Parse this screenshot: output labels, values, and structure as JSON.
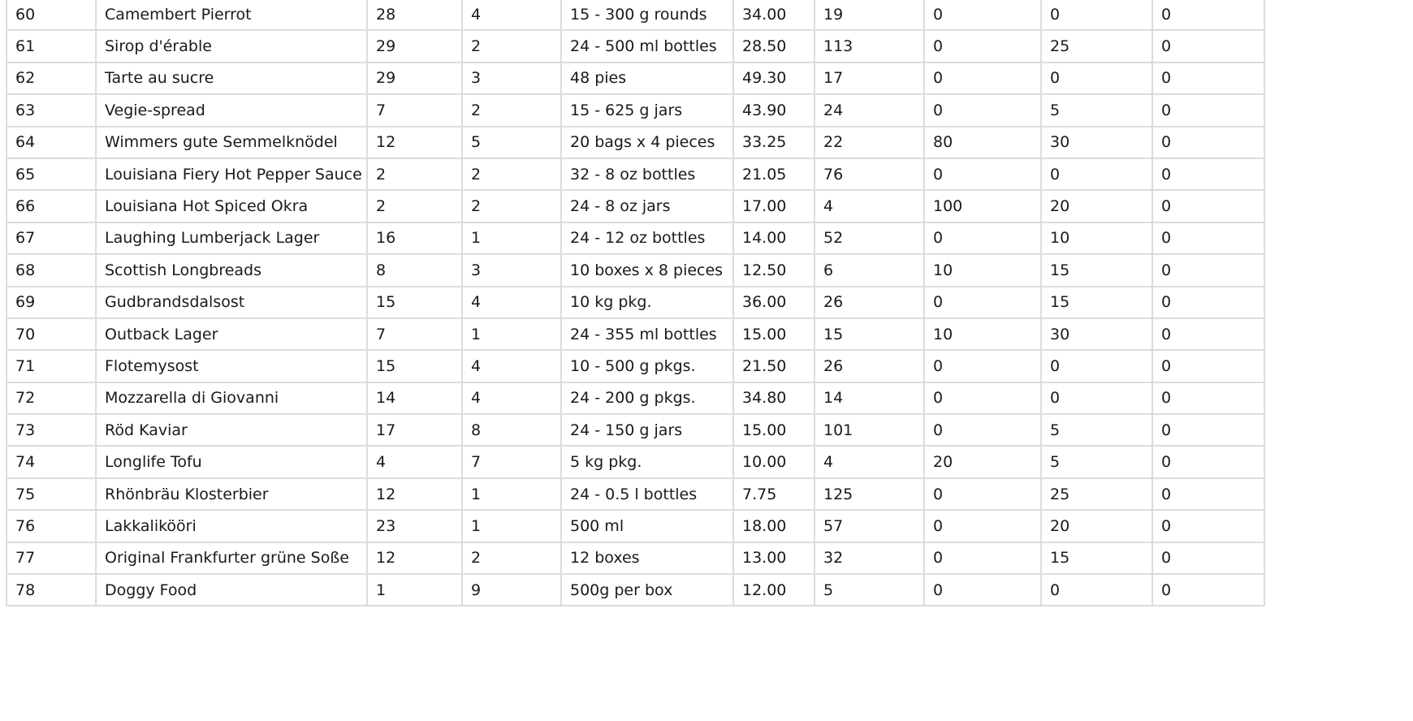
{
  "grid": {
    "rows": [
      [
        "60",
        "Camembert Pierrot",
        "28",
        "4",
        "15 - 300 g rounds",
        "34.00",
        "19",
        "0",
        "0",
        "0"
      ],
      [
        "61",
        "Sirop d'érable",
        "29",
        "2",
        "24 - 500 ml bottles",
        "28.50",
        "113",
        "0",
        "25",
        "0"
      ],
      [
        "62",
        "Tarte au sucre",
        "29",
        "3",
        "48 pies",
        "49.30",
        "17",
        "0",
        "0",
        "0"
      ],
      [
        "63",
        "Vegie-spread",
        "7",
        "2",
        "15 - 625 g jars",
        "43.90",
        "24",
        "0",
        "5",
        "0"
      ],
      [
        "64",
        "Wimmers gute Semmelknödel",
        "12",
        "5",
        "20 bags x 4 pieces",
        "33.25",
        "22",
        "80",
        "30",
        "0"
      ],
      [
        "65",
        "Louisiana Fiery Hot Pepper Sauce",
        "2",
        "2",
        "32 - 8 oz bottles",
        "21.05",
        "76",
        "0",
        "0",
        "0"
      ],
      [
        "66",
        "Louisiana Hot Spiced Okra",
        "2",
        "2",
        "24 - 8 oz jars",
        "17.00",
        "4",
        "100",
        "20",
        "0"
      ],
      [
        "67",
        "Laughing Lumberjack Lager",
        "16",
        "1",
        "24 - 12 oz bottles",
        "14.00",
        "52",
        "0",
        "10",
        "0"
      ],
      [
        "68",
        "Scottish Longbreads",
        "8",
        "3",
        "10 boxes x 8 pieces",
        "12.50",
        "6",
        "10",
        "15",
        "0"
      ],
      [
        "69",
        "Gudbrandsdalsost",
        "15",
        "4",
        "10 kg pkg.",
        "36.00",
        "26",
        "0",
        "15",
        "0"
      ],
      [
        "70",
        "Outback Lager",
        "7",
        "1",
        "24 - 355 ml bottles",
        "15.00",
        "15",
        "10",
        "30",
        "0"
      ],
      [
        "71",
        "Flotemysost",
        "15",
        "4",
        "10 - 500 g pkgs.",
        "21.50",
        "26",
        "0",
        "0",
        "0"
      ],
      [
        "72",
        "Mozzarella di Giovanni",
        "14",
        "4",
        "24 - 200 g pkgs.",
        "34.80",
        "14",
        "0",
        "0",
        "0"
      ],
      [
        "73",
        "Röd Kaviar",
        "17",
        "8",
        "24 - 150 g jars",
        "15.00",
        "101",
        "0",
        "5",
        "0"
      ],
      [
        "74",
        "Longlife Tofu",
        "4",
        "7",
        "5 kg pkg.",
        "10.00",
        "4",
        "20",
        "5",
        "0"
      ],
      [
        "75",
        "Rhönbräu Klosterbier",
        "12",
        "1",
        "24 - 0.5 l bottles",
        "7.75",
        "125",
        "0",
        "25",
        "0"
      ],
      [
        "76",
        "Lakkalikööri",
        "23",
        "1",
        "500 ml",
        "18.00",
        "57",
        "0",
        "20",
        "0"
      ],
      [
        "77",
        "Original Frankfurter grüne Soße",
        "12",
        "2",
        "12 boxes",
        "13.00",
        "32",
        "0",
        "15",
        "0"
      ],
      [
        "78",
        "Doggy Food",
        "1",
        "9",
        "500g per box",
        "12.00",
        "5",
        "0",
        "0",
        "0"
      ]
    ]
  }
}
